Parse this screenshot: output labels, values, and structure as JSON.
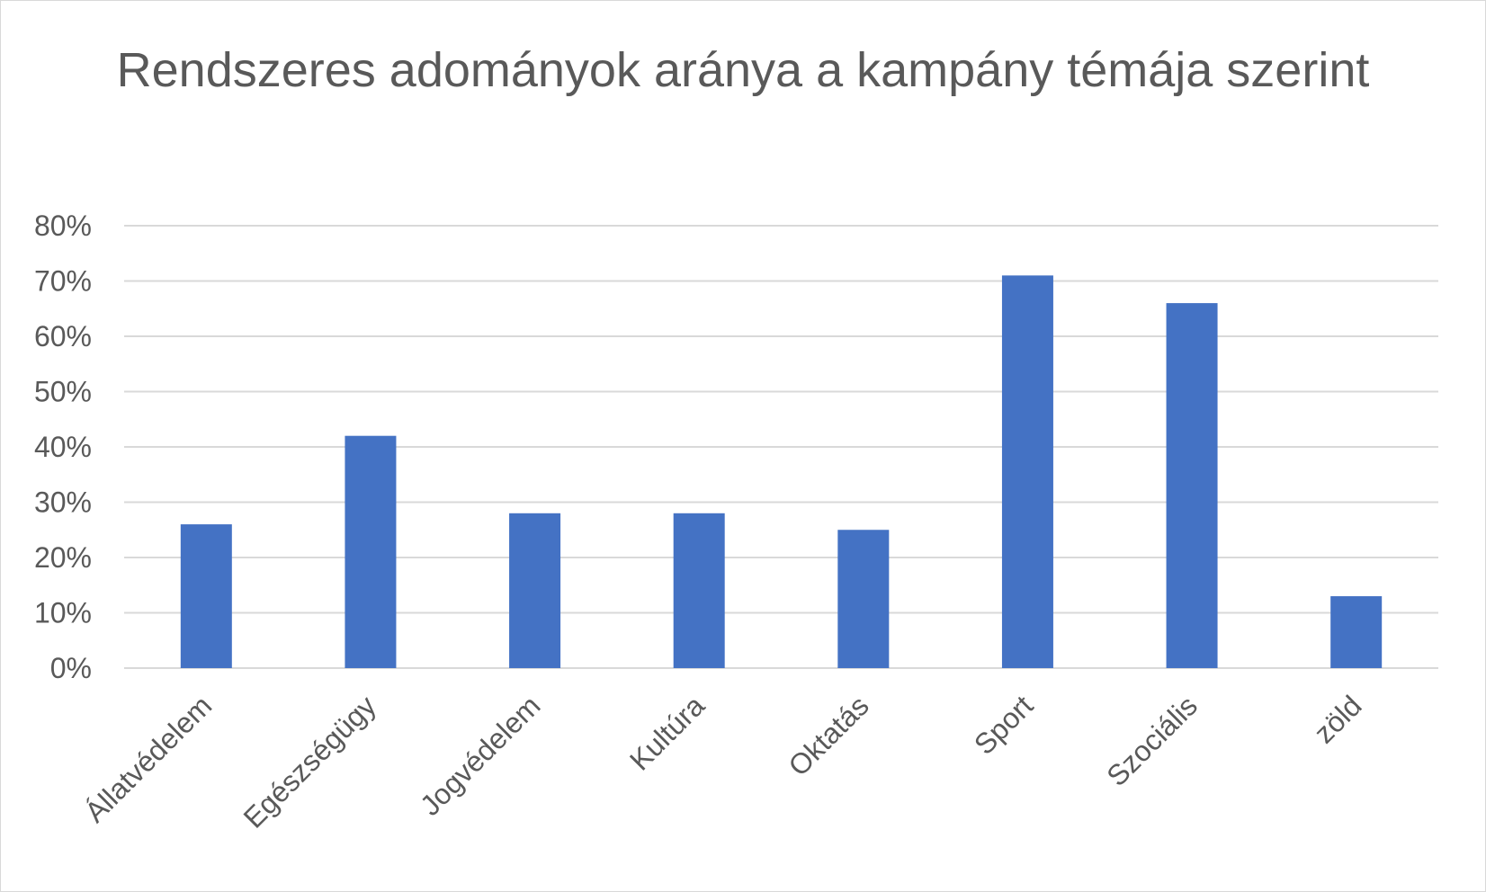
{
  "chart_data": {
    "type": "bar",
    "title": "Rendszeres adományok aránya a kampány témája szerint",
    "categories": [
      "Állatvédelem",
      "Egészségügy",
      "Jogvédelem",
      "Kultúra",
      "Oktatás",
      "Sport",
      "Szociális",
      "zöld"
    ],
    "values": [
      0.26,
      0.42,
      0.28,
      0.28,
      0.25,
      0.71,
      0.66,
      0.13
    ],
    "ylim": [
      0,
      0.8
    ],
    "yticks": [
      0,
      0.1,
      0.2,
      0.3,
      0.4,
      0.5,
      0.6,
      0.7,
      0.8
    ],
    "ytick_labels": [
      "0%",
      "10%",
      "20%",
      "30%",
      "40%",
      "50%",
      "60%",
      "70%",
      "80%"
    ],
    "xlabel": "",
    "ylabel": "",
    "grid": true,
    "legend": "none",
    "bar_color": "#4472c4"
  }
}
